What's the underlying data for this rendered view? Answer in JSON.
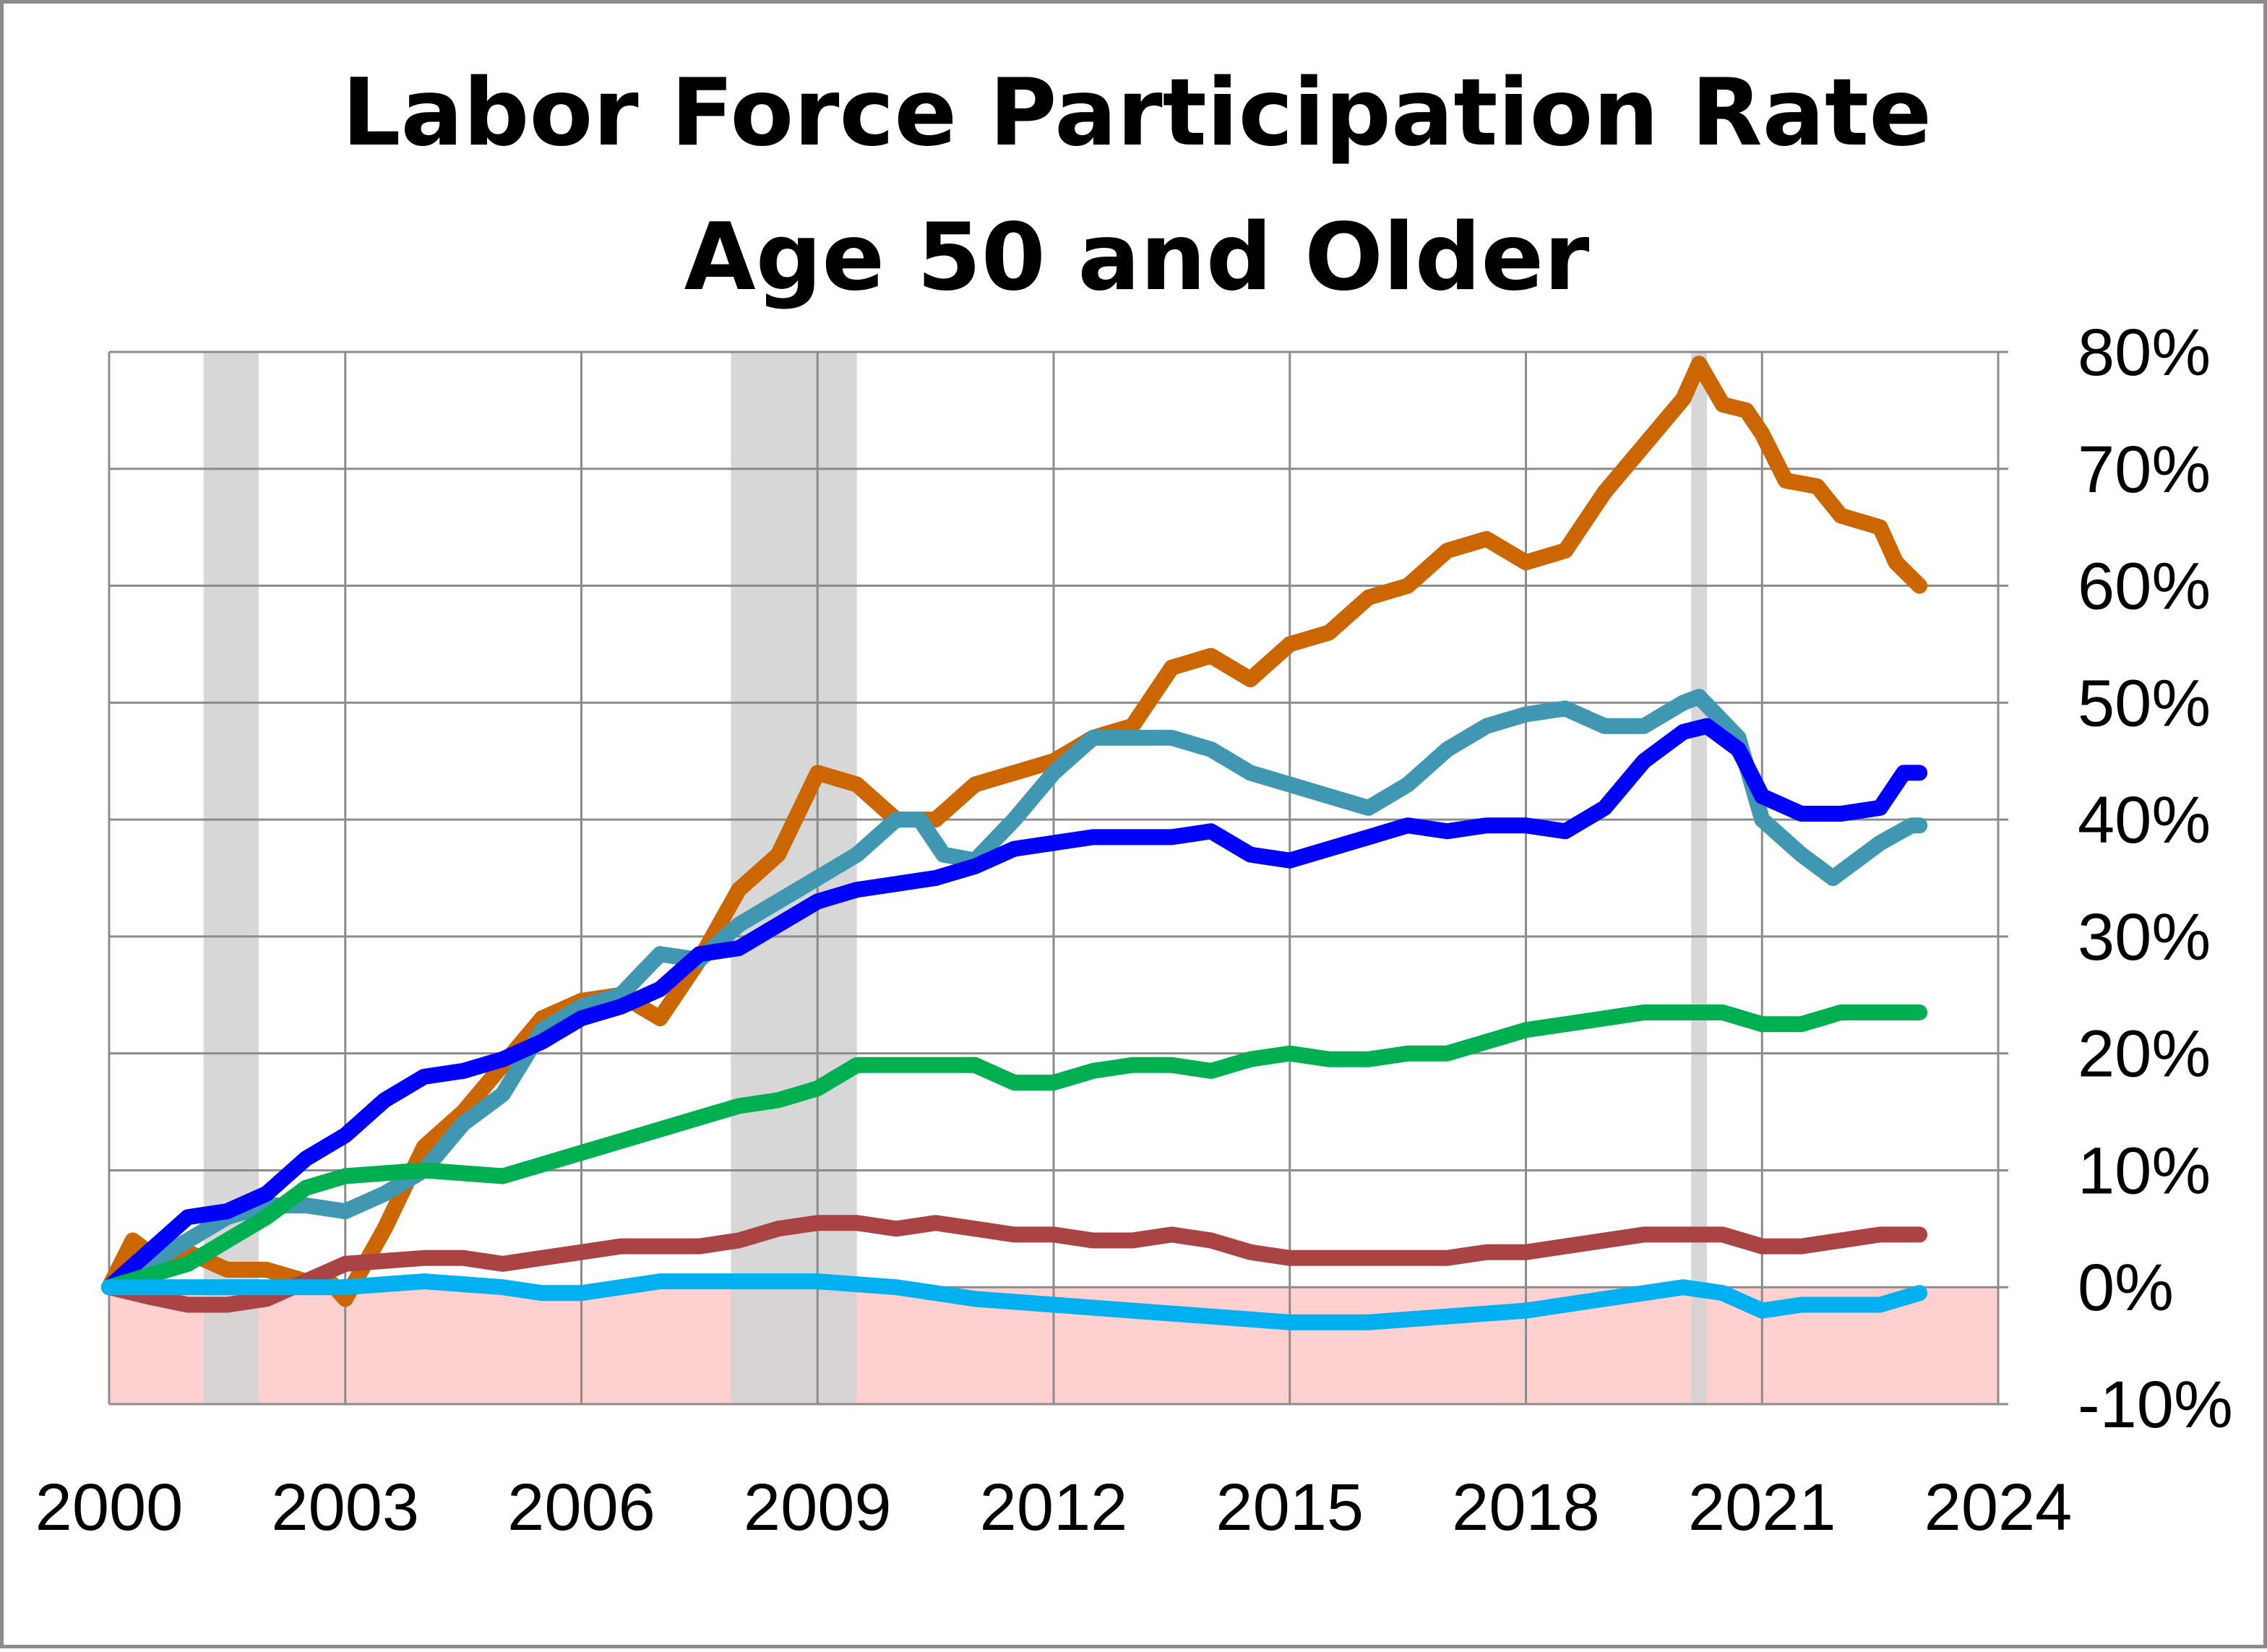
{
  "chart_data": {
    "type": "line",
    "title": [
      "Labor Force Participation Rate",
      "Age 50 and Older"
    ],
    "xlim": [
      2000,
      2024
    ],
    "ylim": [
      -10,
      80
    ],
    "x_ticks": [
      "2000",
      "2003",
      "2006",
      "2009",
      "2012",
      "2015",
      "2018",
      "2021",
      "2024"
    ],
    "y_ticks": [
      "80%",
      "70%",
      "60%",
      "50%",
      "40%",
      "30%",
      "20%",
      "10%",
      "0%",
      "-10%"
    ],
    "y_axis_side": "right",
    "grid": true,
    "legend": "none",
    "recessions": [
      [
        2001.2,
        2001.9
      ],
      [
        2007.9,
        2009.5
      ],
      [
        2020.1,
        2020.3
      ]
    ],
    "recession_color": "#d3d3d3",
    "negative_region_color": "#ffd0d0",
    "series": [
      {
        "color": "#cc6600",
        "points": [
          [
            2000,
            0
          ],
          [
            2000.3,
            4
          ],
          [
            2000.6,
            2.5
          ],
          [
            2001,
            3
          ],
          [
            2001.5,
            1.5
          ],
          [
            2002,
            1.5
          ],
          [
            2002.5,
            0.5
          ],
          [
            2002.8,
            0.5
          ],
          [
            2003,
            -1
          ],
          [
            2003.5,
            5
          ],
          [
            2004,
            12
          ],
          [
            2004.5,
            15
          ],
          [
            2005,
            19
          ],
          [
            2005.5,
            23
          ],
          [
            2006,
            24.5
          ],
          [
            2006.5,
            25
          ],
          [
            2007,
            23
          ],
          [
            2007.5,
            28
          ],
          [
            2008,
            34
          ],
          [
            2008.5,
            37
          ],
          [
            2009,
            44
          ],
          [
            2009.5,
            43
          ],
          [
            2010,
            40
          ],
          [
            2010.5,
            40
          ],
          [
            2011,
            43
          ],
          [
            2011.5,
            44
          ],
          [
            2012,
            45
          ],
          [
            2012.5,
            47
          ],
          [
            2013,
            48
          ],
          [
            2013.5,
            53
          ],
          [
            2014,
            54
          ],
          [
            2014.5,
            52
          ],
          [
            2015,
            55
          ],
          [
            2015.5,
            56
          ],
          [
            2016,
            59
          ],
          [
            2016.5,
            60
          ],
          [
            2017,
            63
          ],
          [
            2017.5,
            64
          ],
          [
            2018,
            62
          ],
          [
            2018.5,
            63
          ],
          [
            2019,
            68
          ],
          [
            2019.5,
            72
          ],
          [
            2020,
            76
          ],
          [
            2020.2,
            79
          ],
          [
            2020.5,
            75.5
          ],
          [
            2020.8,
            75
          ],
          [
            2021,
            73
          ],
          [
            2021.3,
            69
          ],
          [
            2021.7,
            68.5
          ],
          [
            2022,
            66
          ],
          [
            2022.5,
            65
          ],
          [
            2022.7,
            62
          ],
          [
            2023,
            60
          ]
        ]
      },
      {
        "color": "#4097b1",
        "points": [
          [
            2000,
            0
          ],
          [
            2001,
            4
          ],
          [
            2001.5,
            6
          ],
          [
            2002,
            7
          ],
          [
            2002.5,
            7
          ],
          [
            2003,
            6.5
          ],
          [
            2003.5,
            8
          ],
          [
            2004,
            10
          ],
          [
            2004.5,
            14
          ],
          [
            2005,
            16.5
          ],
          [
            2005.5,
            22
          ],
          [
            2006,
            24
          ],
          [
            2006.5,
            25
          ],
          [
            2007,
            28.5
          ],
          [
            2007.5,
            28
          ],
          [
            2008,
            31
          ],
          [
            2008.5,
            33
          ],
          [
            2009,
            35
          ],
          [
            2009.5,
            37
          ],
          [
            2010,
            40
          ],
          [
            2010.3,
            40
          ],
          [
            2010.6,
            37
          ],
          [
            2011,
            36.5
          ],
          [
            2011.5,
            40
          ],
          [
            2012,
            44
          ],
          [
            2012.5,
            47
          ],
          [
            2013,
            47
          ],
          [
            2013.5,
            47
          ],
          [
            2014,
            46
          ],
          [
            2014.5,
            44
          ],
          [
            2015,
            43
          ],
          [
            2015.5,
            42
          ],
          [
            2016,
            41
          ],
          [
            2016.5,
            43
          ],
          [
            2017,
            46
          ],
          [
            2017.5,
            48
          ],
          [
            2018,
            49
          ],
          [
            2018.5,
            49.5
          ],
          [
            2019,
            48
          ],
          [
            2019.5,
            48
          ],
          [
            2020,
            50
          ],
          [
            2020.2,
            50.5
          ],
          [
            2020.7,
            47
          ],
          [
            2021,
            40
          ],
          [
            2021.5,
            37
          ],
          [
            2021.9,
            35
          ],
          [
            2022.5,
            38
          ],
          [
            2022.9,
            39.5
          ],
          [
            2023,
            39.5
          ]
        ]
      },
      {
        "color": "#0000ff",
        "points": [
          [
            2000,
            0
          ],
          [
            2000.5,
            3
          ],
          [
            2001,
            6
          ],
          [
            2001.5,
            6.5
          ],
          [
            2002,
            8
          ],
          [
            2002.5,
            11
          ],
          [
            2003,
            13
          ],
          [
            2003.5,
            16
          ],
          [
            2004,
            18
          ],
          [
            2004.5,
            18.5
          ],
          [
            2005,
            19.5
          ],
          [
            2005.5,
            21
          ],
          [
            2006,
            23
          ],
          [
            2006.5,
            24
          ],
          [
            2007,
            25.5
          ],
          [
            2007.5,
            28.5
          ],
          [
            2008,
            29
          ],
          [
            2008.5,
            31
          ],
          [
            2009,
            33
          ],
          [
            2009.5,
            34
          ],
          [
            2010,
            34.5
          ],
          [
            2010.5,
            35
          ],
          [
            2011,
            36
          ],
          [
            2011.5,
            37.5
          ],
          [
            2012,
            38
          ],
          [
            2012.5,
            38.5
          ],
          [
            2013,
            38.5
          ],
          [
            2013.5,
            38.5
          ],
          [
            2014,
            39
          ],
          [
            2014.5,
            37
          ],
          [
            2015,
            36.5
          ],
          [
            2015.5,
            37.5
          ],
          [
            2016,
            38.5
          ],
          [
            2016.5,
            39.5
          ],
          [
            2017,
            39
          ],
          [
            2017.5,
            39.5
          ],
          [
            2018,
            39.5
          ],
          [
            2018.5,
            39
          ],
          [
            2019,
            41
          ],
          [
            2019.5,
            45
          ],
          [
            2020,
            47.5
          ],
          [
            2020.3,
            48
          ],
          [
            2020.7,
            46
          ],
          [
            2021,
            42
          ],
          [
            2021.5,
            40.5
          ],
          [
            2022,
            40.5
          ],
          [
            2022.5,
            41
          ],
          [
            2022.8,
            44
          ],
          [
            2023,
            44
          ]
        ]
      },
      {
        "color": "#00b050",
        "points": [
          [
            2000,
            0
          ],
          [
            2001,
            2
          ],
          [
            2002,
            6
          ],
          [
            2002.5,
            8.5
          ],
          [
            2003,
            9.5
          ],
          [
            2004,
            10
          ],
          [
            2005,
            9.5
          ],
          [
            2005.5,
            10.5
          ],
          [
            2006,
            11.5
          ],
          [
            2006.5,
            12.5
          ],
          [
            2007,
            13.5
          ],
          [
            2007.5,
            14.5
          ],
          [
            2008,
            15.5
          ],
          [
            2008.5,
            16
          ],
          [
            2009,
            17
          ],
          [
            2009.5,
            19
          ],
          [
            2010,
            19
          ],
          [
            2011,
            19
          ],
          [
            2011.5,
            17.5
          ],
          [
            2012,
            17.5
          ],
          [
            2012.5,
            18.5
          ],
          [
            2013,
            19
          ],
          [
            2013.5,
            19
          ],
          [
            2014,
            18.5
          ],
          [
            2014.5,
            19.5
          ],
          [
            2015,
            20
          ],
          [
            2015.5,
            19.5
          ],
          [
            2016,
            19.5
          ],
          [
            2016.5,
            20
          ],
          [
            2017,
            20
          ],
          [
            2017.5,
            21
          ],
          [
            2018,
            22
          ],
          [
            2018.5,
            22.5
          ],
          [
            2019,
            23
          ],
          [
            2019.5,
            23.5
          ],
          [
            2020,
            23.5
          ],
          [
            2020.5,
            23.5
          ],
          [
            2021,
            22.5
          ],
          [
            2021.5,
            22.5
          ],
          [
            2022,
            23.5
          ],
          [
            2022.5,
            23.5
          ],
          [
            2023,
            23.5
          ]
        ]
      },
      {
        "color": "#aa4444",
        "points": [
          [
            2000,
            0
          ],
          [
            2000.5,
            -0.8
          ],
          [
            2001,
            -1.5
          ],
          [
            2001.5,
            -1.5
          ],
          [
            2002,
            -1
          ],
          [
            2002.5,
            0.5
          ],
          [
            2003,
            2
          ],
          [
            2004,
            2.5
          ],
          [
            2004.5,
            2.5
          ],
          [
            2005,
            2
          ],
          [
            2005.5,
            2.5
          ],
          [
            2006,
            3
          ],
          [
            2006.5,
            3.5
          ],
          [
            2007,
            3.5
          ],
          [
            2007.5,
            3.5
          ],
          [
            2008,
            4
          ],
          [
            2008.5,
            5
          ],
          [
            2009,
            5.5
          ],
          [
            2009.5,
            5.5
          ],
          [
            2010,
            5
          ],
          [
            2010.5,
            5.5
          ],
          [
            2011,
            5
          ],
          [
            2011.5,
            4.5
          ],
          [
            2012,
            4.5
          ],
          [
            2012.5,
            4
          ],
          [
            2013,
            4
          ],
          [
            2013.5,
            4.5
          ],
          [
            2014,
            4
          ],
          [
            2014.5,
            3
          ],
          [
            2015,
            2.5
          ],
          [
            2016,
            2.5
          ],
          [
            2016.5,
            2.5
          ],
          [
            2017,
            2.5
          ],
          [
            2017.5,
            3
          ],
          [
            2018,
            3
          ],
          [
            2018.5,
            3.5
          ],
          [
            2019,
            4
          ],
          [
            2019.5,
            4.5
          ],
          [
            2020,
            4.5
          ],
          [
            2020.5,
            4.5
          ],
          [
            2021,
            3.5
          ],
          [
            2021.5,
            3.5
          ],
          [
            2022,
            4
          ],
          [
            2022.5,
            4.5
          ],
          [
            2023,
            4.5
          ]
        ]
      },
      {
        "color": "#00b0f0",
        "points": [
          [
            2000,
            0
          ],
          [
            2001,
            0
          ],
          [
            2002,
            0
          ],
          [
            2003,
            0
          ],
          [
            2004,
            0.5
          ],
          [
            2005,
            0
          ],
          [
            2005.5,
            -0.5
          ],
          [
            2006,
            -0.5
          ],
          [
            2007,
            0.5
          ],
          [
            2008,
            0.5
          ],
          [
            2009,
            0.5
          ],
          [
            2010,
            0
          ],
          [
            2011,
            -1
          ],
          [
            2012,
            -1.5
          ],
          [
            2013,
            -2
          ],
          [
            2014,
            -2.5
          ],
          [
            2015,
            -3
          ],
          [
            2016,
            -3
          ],
          [
            2017,
            -2.5
          ],
          [
            2018,
            -2
          ],
          [
            2019,
            -1
          ],
          [
            2020,
            0
          ],
          [
            2020.5,
            -0.5
          ],
          [
            2021,
            -2
          ],
          [
            2021.5,
            -1.5
          ],
          [
            2022,
            -1.5
          ],
          [
            2022.5,
            -1.5
          ],
          [
            2023,
            -0.5
          ]
        ]
      }
    ]
  }
}
